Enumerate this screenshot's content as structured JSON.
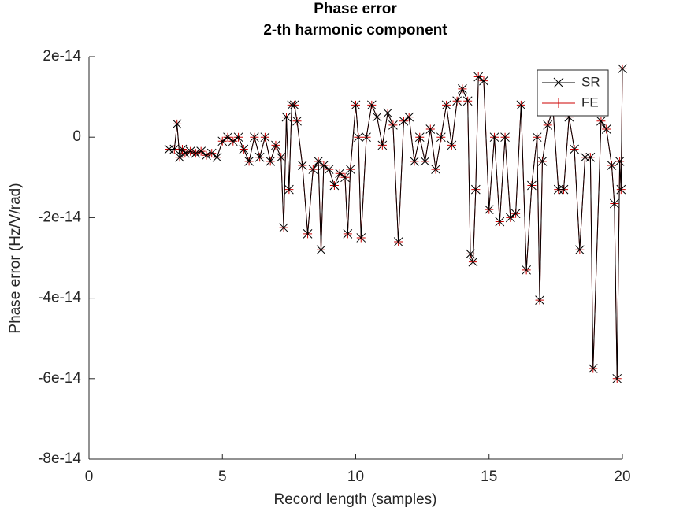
{
  "chart_data": {
    "type": "line",
    "title": "Phase error",
    "subtitle": "2-th harmonic component",
    "xlabel": "Record length (samples)",
    "ylabel": "Phase error (Hz/V/rad)",
    "x": [
      3.0,
      3.2,
      3.3,
      3.4,
      3.5,
      3.6,
      3.8,
      4.0,
      4.2,
      4.4,
      4.6,
      4.8,
      5.0,
      5.2,
      5.4,
      5.6,
      5.8,
      6.0,
      6.2,
      6.4,
      6.6,
      6.8,
      7.0,
      7.2,
      7.3,
      7.4,
      7.5,
      7.6,
      7.7,
      7.8,
      8.0,
      8.2,
      8.4,
      8.6,
      8.7,
      8.8,
      9.0,
      9.2,
      9.4,
      9.6,
      9.7,
      9.8,
      10.0,
      10.1,
      10.2,
      10.4,
      10.6,
      10.8,
      11.0,
      11.2,
      11.4,
      11.6,
      11.8,
      12.0,
      12.2,
      12.4,
      12.6,
      12.8,
      13.0,
      13.2,
      13.4,
      13.6,
      13.8,
      14.0,
      14.2,
      14.3,
      14.4,
      14.5,
      14.6,
      14.8,
      15.0,
      15.2,
      15.4,
      15.6,
      15.8,
      16.0,
      16.2,
      16.4,
      16.6,
      16.8,
      16.9,
      17.0,
      17.2,
      17.4,
      17.6,
      17.8,
      18.0,
      18.2,
      18.4,
      18.6,
      18.8,
      18.9,
      19.2,
      19.4,
      19.6,
      19.7,
      19.8,
      19.9,
      19.95,
      20.0
    ],
    "series": [
      {
        "name": "SR",
        "color": "#000000",
        "marker": "x",
        "values": [
          -3e-15,
          -3e-15,
          3.3e-15,
          -5e-15,
          -3e-15,
          -4e-15,
          -3.5e-15,
          -4e-15,
          -3.5e-15,
          -4.5e-15,
          -4e-15,
          -5e-15,
          -1e-15,
          0,
          -1e-15,
          0,
          -3e-15,
          -6e-15,
          0,
          -5e-15,
          0,
          -6e-15,
          -2e-15,
          -5e-15,
          -2.25e-14,
          5e-15,
          -1.3e-14,
          8e-15,
          8e-15,
          4e-15,
          -7e-15,
          -2.4e-14,
          -8e-15,
          -6e-15,
          -2.8e-14,
          -7e-15,
          -8e-15,
          -1.2e-14,
          -9e-15,
          -1e-14,
          -2.4e-14,
          -8e-15,
          8e-15,
          0,
          -2.5e-14,
          0,
          8e-15,
          5e-15,
          -2e-15,
          6e-15,
          3e-15,
          -2.6e-14,
          4e-15,
          5e-15,
          -6e-15,
          0,
          -6e-15,
          2e-15,
          -8e-15,
          0,
          8e-15,
          -2e-15,
          9e-15,
          1.2e-14,
          9e-15,
          -2.9e-14,
          -3.1e-14,
          -1.3e-14,
          1.5e-14,
          1.4e-14,
          -1.8e-14,
          0,
          -2.1e-14,
          0,
          -2e-14,
          -1.9e-14,
          8e-15,
          -3.3e-14,
          -1.2e-14,
          0,
          -4.05e-14,
          -6e-15,
          3e-15,
          7e-15,
          -1.3e-14,
          -1.3e-14,
          5e-15,
          -3e-15,
          -2.8e-14,
          -5e-15,
          -5e-15,
          -5.75e-14,
          4e-15,
          2e-15,
          -7e-15,
          -1.65e-14,
          -6e-14,
          -6e-15,
          -1.3e-14,
          1.7e-14
        ]
      },
      {
        "name": "FE",
        "color": "#cc0000",
        "marker": "+",
        "values": [
          -3e-15,
          -3e-15,
          3.3e-15,
          -5e-15,
          -3e-15,
          -4e-15,
          -3.5e-15,
          -4e-15,
          -3.5e-15,
          -4.5e-15,
          -4e-15,
          -5e-15,
          -1e-15,
          0,
          -1e-15,
          0,
          -3e-15,
          -6e-15,
          0,
          -5e-15,
          0,
          -6e-15,
          -2e-15,
          -5e-15,
          -2.25e-14,
          5e-15,
          -1.3e-14,
          8e-15,
          8e-15,
          4e-15,
          -7e-15,
          -2.4e-14,
          -8e-15,
          -6e-15,
          -2.8e-14,
          -7e-15,
          -8e-15,
          -1.2e-14,
          -9e-15,
          -1e-14,
          -2.4e-14,
          -8e-15,
          8e-15,
          0,
          -2.5e-14,
          0,
          8e-15,
          5e-15,
          -2e-15,
          6e-15,
          3e-15,
          -2.6e-14,
          4e-15,
          5e-15,
          -6e-15,
          0,
          -6e-15,
          2e-15,
          -8e-15,
          0,
          8e-15,
          -2e-15,
          9e-15,
          1.2e-14,
          9e-15,
          -2.9e-14,
          -3.1e-14,
          -1.3e-14,
          1.5e-14,
          1.4e-14,
          -1.8e-14,
          0,
          -2.1e-14,
          0,
          -2e-14,
          -1.9e-14,
          8e-15,
          -3.3e-14,
          -1.2e-14,
          0,
          -4.05e-14,
          -6e-15,
          3e-15,
          7e-15,
          -1.3e-14,
          -1.3e-14,
          5e-15,
          -3e-15,
          -2.8e-14,
          -5e-15,
          -5e-15,
          -5.75e-14,
          4e-15,
          2e-15,
          -7e-15,
          -1.65e-14,
          -6e-14,
          -6e-15,
          -1.3e-14,
          1.7e-14
        ]
      }
    ],
    "xlim": [
      0,
      20
    ],
    "xticks": [
      0,
      5,
      10,
      15,
      20
    ],
    "ylim": [
      -8e-14,
      2e-14
    ],
    "yticks": [
      {
        "value": -8e-14,
        "label": "-8e-14"
      },
      {
        "value": -6e-14,
        "label": "-6e-14"
      },
      {
        "value": -4e-14,
        "label": "-4e-14"
      },
      {
        "value": -2e-14,
        "label": "-2e-14"
      },
      0,
      {
        "value": 2e-14,
        "label": "2e-14"
      }
    ],
    "grid": false,
    "legend": "top-right"
  }
}
